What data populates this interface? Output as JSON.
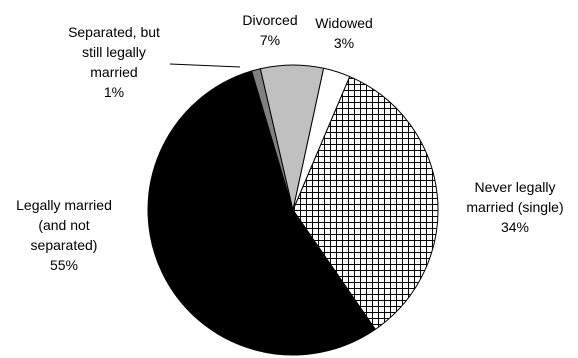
{
  "chart_data": {
    "type": "pie",
    "start_angle_deg": 23,
    "direction": "clockwise",
    "slices": [
      {
        "key": "never-married",
        "label_lines": [
          "Never legally",
          "married (single)",
          "34%"
        ],
        "value": 34,
        "fill": "crosshatch",
        "label_anchor": "middle"
      },
      {
        "key": "legally-married",
        "label_lines": [
          "Legally married",
          "(and not",
          "separated)",
          "55%"
        ],
        "value": 55,
        "fill": "#000000",
        "label_anchor": "middle"
      },
      {
        "key": "separated",
        "label_lines": [
          "Separated, but",
          "still legally",
          "married",
          "1%"
        ],
        "value": 1,
        "fill": "#808080",
        "label_anchor": "middle",
        "leader_line": true
      },
      {
        "key": "divorced",
        "label_lines": [
          "Divorced",
          "7%"
        ],
        "value": 7,
        "fill": "#c0c0c0",
        "label_anchor": "middle"
      },
      {
        "key": "widowed",
        "label_lines": [
          "Widowed",
          "3%"
        ],
        "value": 3,
        "fill": "#ffffff",
        "label_anchor": "middle"
      }
    ]
  }
}
